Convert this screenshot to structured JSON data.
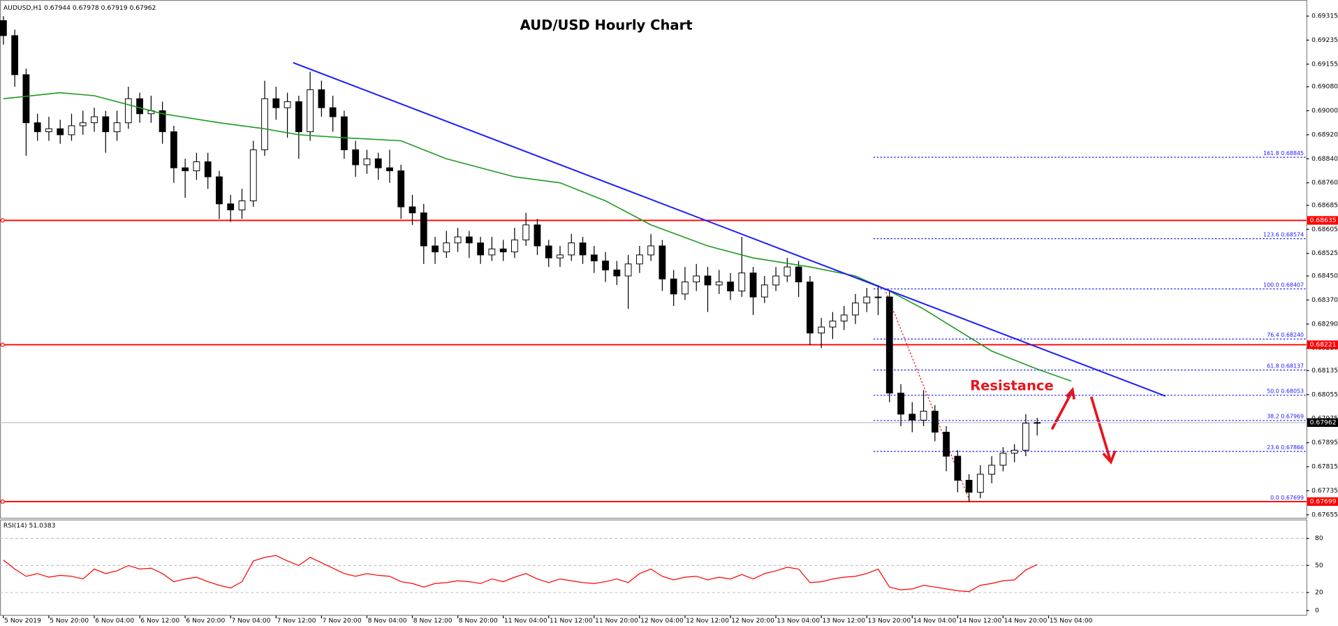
{
  "chart_data": {
    "type": "candlestick",
    "symbol": "AUDUSD,H1",
    "quote": [
      0.67944,
      0.67978,
      0.67919,
      0.67962
    ],
    "title": "AUD/USD Hourly Chart",
    "annotation": "Resistance",
    "xlim": [
      -0.3,
      114.7
    ],
    "xticks": [
      {
        "value": 0,
        "label": "5 Nov 2019"
      },
      {
        "value": 4,
        "label": "5 Nov 20:00"
      },
      {
        "value": 8,
        "label": "6 Nov 04:00"
      },
      {
        "value": 12,
        "label": "6 Nov 12:00"
      },
      {
        "value": 16,
        "label": "6 Nov 20:00"
      },
      {
        "value": 20,
        "label": "7 Nov 04:00"
      },
      {
        "value": 24,
        "label": "7 Nov 12:00"
      },
      {
        "value": 28,
        "label": "7 Nov 20:00"
      },
      {
        "value": 32,
        "label": "8 Nov 04:00"
      },
      {
        "value": 36,
        "label": "8 Nov 12:00"
      },
      {
        "value": 40,
        "label": "8 Nov 20:00"
      },
      {
        "value": 44,
        "label": "11 Nov 04:00"
      },
      {
        "value": 48,
        "label": "11 Nov 12:00"
      },
      {
        "value": 52,
        "label": "11 Nov 20:00"
      },
      {
        "value": 56,
        "label": "12 Nov 04:00"
      },
      {
        "value": 60,
        "label": "12 Nov 12:00"
      },
      {
        "value": 64,
        "label": "12 Nov 20:00"
      },
      {
        "value": 68,
        "label": "13 Nov 04:00"
      },
      {
        "value": 72,
        "label": "13 Nov 12:00"
      },
      {
        "value": 76,
        "label": "13 Nov 20:00"
      },
      {
        "value": 80,
        "label": "14 Nov 04:00"
      },
      {
        "value": 84,
        "label": "14 Nov 12:00"
      },
      {
        "value": 88,
        "label": "14 Nov 20:00"
      },
      {
        "value": 92,
        "label": "15 Nov 04:00"
      }
    ],
    "ylim": [
      0.67645,
      0.6936
    ],
    "yticks": [
      {
        "value": 0.69315,
        "label": "0.69315"
      },
      {
        "value": 0.69235,
        "label": "0.69235"
      },
      {
        "value": 0.69155,
        "label": "0.69155"
      },
      {
        "value": 0.6908,
        "label": "0.69080"
      },
      {
        "value": 0.69,
        "label": "0.69000"
      },
      {
        "value": 0.6892,
        "label": "0.68920"
      },
      {
        "value": 0.6884,
        "label": "0.68840"
      },
      {
        "value": 0.6876,
        "label": "0.68760"
      },
      {
        "value": 0.68685,
        "label": "0.68685"
      },
      {
        "value": 0.68605,
        "label": "0.68605"
      },
      {
        "value": 0.68525,
        "label": "0.68525"
      },
      {
        "value": 0.6845,
        "label": "0.68450"
      },
      {
        "value": 0.6837,
        "label": "0.68370"
      },
      {
        "value": 0.6829,
        "label": "0.68290"
      },
      {
        "value": 0.6821,
        "label": "0.68210"
      },
      {
        "value": 0.68135,
        "label": "0.68135"
      },
      {
        "value": 0.68055,
        "label": "0.68055"
      },
      {
        "value": 0.67975,
        "label": "0.67975"
      },
      {
        "value": 0.67895,
        "label": "0.67895"
      },
      {
        "value": 0.67815,
        "label": "0.67815"
      },
      {
        "value": 0.67735,
        "label": "0.67735"
      },
      {
        "value": 0.67655,
        "label": "0.67655"
      }
    ],
    "up_color": "#ffffff",
    "down_color": "#000000",
    "ohlc": [
      [
        0.693,
        0.69315,
        0.6922,
        0.6925
      ],
      [
        0.6925,
        0.6927,
        0.6908,
        0.6912
      ],
      [
        0.6912,
        0.6914,
        0.6885,
        0.6896
      ],
      [
        0.6896,
        0.6899,
        0.689,
        0.6893
      ],
      [
        0.6893,
        0.6898,
        0.689,
        0.6894
      ],
      [
        0.6894,
        0.6897,
        0.6889,
        0.6892
      ],
      [
        0.6892,
        0.6899,
        0.689,
        0.6895
      ],
      [
        0.6895,
        0.69,
        0.6892,
        0.6896
      ],
      [
        0.6896,
        0.6901,
        0.6893,
        0.6898
      ],
      [
        0.6898,
        0.69,
        0.6886,
        0.6893
      ],
      [
        0.6893,
        0.69,
        0.689,
        0.6896
      ],
      [
        0.6896,
        0.6908,
        0.6894,
        0.6904
      ],
      [
        0.6904,
        0.6906,
        0.6896,
        0.6899
      ],
      [
        0.6899,
        0.6905,
        0.6896,
        0.69
      ],
      [
        0.69,
        0.6903,
        0.6889,
        0.6893
      ],
      [
        0.6893,
        0.6895,
        0.6876,
        0.6881
      ],
      [
        0.6881,
        0.6884,
        0.6871,
        0.688
      ],
      [
        0.688,
        0.6886,
        0.6877,
        0.6883
      ],
      [
        0.6883,
        0.6886,
        0.6874,
        0.6878
      ],
      [
        0.6878,
        0.688,
        0.6864,
        0.6869
      ],
      [
        0.6869,
        0.6872,
        0.6863,
        0.6867
      ],
      [
        0.6867,
        0.6874,
        0.6864,
        0.687
      ],
      [
        0.687,
        0.689,
        0.6868,
        0.6887
      ],
      [
        0.6887,
        0.691,
        0.6885,
        0.6904
      ],
      [
        0.6904,
        0.6908,
        0.6897,
        0.6901
      ],
      [
        0.6901,
        0.6906,
        0.6891,
        0.6903
      ],
      [
        0.6903,
        0.6905,
        0.6884,
        0.6893
      ],
      [
        0.6893,
        0.6913,
        0.689,
        0.6907
      ],
      [
        0.6907,
        0.691,
        0.6898,
        0.6901
      ],
      [
        0.6901,
        0.6905,
        0.6893,
        0.6898
      ],
      [
        0.6898,
        0.69,
        0.6884,
        0.6887
      ],
      [
        0.6887,
        0.689,
        0.6878,
        0.6882
      ],
      [
        0.6882,
        0.6887,
        0.6879,
        0.6884
      ],
      [
        0.6884,
        0.6886,
        0.6877,
        0.6881
      ],
      [
        0.6881,
        0.6887,
        0.6876,
        0.688
      ],
      [
        0.688,
        0.6882,
        0.6864,
        0.6868
      ],
      [
        0.6868,
        0.6872,
        0.6862,
        0.6866
      ],
      [
        0.6866,
        0.6869,
        0.6849,
        0.6855
      ],
      [
        0.6855,
        0.6858,
        0.6849,
        0.6853
      ],
      [
        0.6853,
        0.686,
        0.6851,
        0.6856
      ],
      [
        0.6856,
        0.6861,
        0.6853,
        0.6858
      ],
      [
        0.6858,
        0.686,
        0.6851,
        0.6856
      ],
      [
        0.6856,
        0.6858,
        0.6849,
        0.6852
      ],
      [
        0.6852,
        0.6858,
        0.685,
        0.6854
      ],
      [
        0.6854,
        0.6857,
        0.685,
        0.6853
      ],
      [
        0.6853,
        0.6861,
        0.6851,
        0.6857
      ],
      [
        0.6857,
        0.6866,
        0.6855,
        0.6862
      ],
      [
        0.6862,
        0.6864,
        0.6852,
        0.6855
      ],
      [
        0.6855,
        0.6857,
        0.6848,
        0.6851
      ],
      [
        0.6851,
        0.6855,
        0.6848,
        0.6852
      ],
      [
        0.6852,
        0.6859,
        0.685,
        0.6856
      ],
      [
        0.6856,
        0.6858,
        0.6849,
        0.6852
      ],
      [
        0.6852,
        0.6855,
        0.6846,
        0.685
      ],
      [
        0.685,
        0.6853,
        0.6843,
        0.6847
      ],
      [
        0.6847,
        0.685,
        0.6842,
        0.6845
      ],
      [
        0.6845,
        0.6852,
        0.6834,
        0.6849
      ],
      [
        0.6849,
        0.6855,
        0.6846,
        0.6852
      ],
      [
        0.6852,
        0.6859,
        0.685,
        0.6855
      ],
      [
        0.6855,
        0.6857,
        0.684,
        0.6844
      ],
      [
        0.6844,
        0.6847,
        0.6835,
        0.6839
      ],
      [
        0.6839,
        0.6848,
        0.6837,
        0.6843
      ],
      [
        0.6843,
        0.6849,
        0.684,
        0.6845
      ],
      [
        0.6845,
        0.6848,
        0.6833,
        0.6842
      ],
      [
        0.6842,
        0.6847,
        0.6839,
        0.6843
      ],
      [
        0.6843,
        0.6846,
        0.6837,
        0.684
      ],
      [
        0.684,
        0.6858,
        0.6838,
        0.6846
      ],
      [
        0.6846,
        0.6848,
        0.6832,
        0.6838
      ],
      [
        0.6838,
        0.6845,
        0.6836,
        0.6842
      ],
      [
        0.6842,
        0.6848,
        0.684,
        0.6845
      ],
      [
        0.6845,
        0.6851,
        0.6843,
        0.6848
      ],
      [
        0.6848,
        0.685,
        0.6838,
        0.6843
      ],
      [
        0.6843,
        0.6845,
        0.6822,
        0.6826
      ],
      [
        0.6826,
        0.6831,
        0.6821,
        0.6828
      ],
      [
        0.6828,
        0.6833,
        0.6824,
        0.683
      ],
      [
        0.683,
        0.6835,
        0.6827,
        0.6832
      ],
      [
        0.6832,
        0.6839,
        0.6829,
        0.6836
      ],
      [
        0.6836,
        0.6841,
        0.6833,
        0.6838
      ],
      [
        0.6838,
        0.6842,
        0.6832,
        0.6838
      ],
      [
        0.6838,
        0.684,
        0.6803,
        0.6806
      ],
      [
        0.6806,
        0.6809,
        0.6795,
        0.6799
      ],
      [
        0.6799,
        0.6803,
        0.6793,
        0.6797
      ],
      [
        0.6797,
        0.6807,
        0.6795,
        0.68
      ],
      [
        0.68,
        0.6802,
        0.679,
        0.6793
      ],
      [
        0.6793,
        0.6795,
        0.678,
        0.6785
      ],
      [
        0.6785,
        0.6787,
        0.6773,
        0.6777
      ],
      [
        0.6777,
        0.6779,
        0.67699,
        0.6773
      ],
      [
        0.6773,
        0.6782,
        0.6771,
        0.6779
      ],
      [
        0.6779,
        0.6785,
        0.6776,
        0.6782
      ],
      [
        0.6782,
        0.6788,
        0.678,
        0.6786
      ],
      [
        0.6786,
        0.6789,
        0.6783,
        0.6787
      ],
      [
        0.6787,
        0.6799,
        0.6785,
        0.6796
      ],
      [
        0.6796,
        0.67978,
        0.67919,
        0.67962
      ]
    ],
    "ma": {
      "color": "#1f9a1f",
      "x": [
        0,
        5,
        8,
        14,
        19,
        23,
        26,
        30,
        35,
        39,
        45,
        49,
        53,
        57,
        62,
        66,
        71,
        75,
        78,
        81,
        84,
        87,
        91,
        94
      ],
      "values": [
        0.6904,
        0.6906,
        0.6905,
        0.6899,
        0.6896,
        0.6894,
        0.6892,
        0.6891,
        0.689,
        0.6884,
        0.6878,
        0.6876,
        0.687,
        0.6862,
        0.6855,
        0.6851,
        0.6848,
        0.6845,
        0.684,
        0.6834,
        0.6827,
        0.682,
        0.6814,
        0.681
      ]
    },
    "trendline": {
      "color": "#1a1aff",
      "x": [
        25.5,
        102.3
      ],
      "values": [
        0.6916,
        0.6805
      ]
    },
    "levels": {
      "color": "#ff0000",
      "values": [
        0.68635,
        0.68221,
        0.67699
      ]
    },
    "fib": {
      "color": "#1a1aff",
      "levels": [
        {
          "ratio": "161.8",
          "price": {
            "value": 0.68845,
            "label": "0.68845"
          }
        },
        {
          "ratio": "123.6",
          "price": {
            "value": 0.68574,
            "label": "0.68574"
          }
        },
        {
          "ratio": "100.0",
          "price": {
            "value": 0.68407,
            "label": "0.68407"
          }
        },
        {
          "ratio": "76.4",
          "price": {
            "value": 0.6824,
            "label": "0.68240"
          }
        },
        {
          "ratio": "61.8",
          "price": {
            "value": 0.68137,
            "label": "0.68137"
          }
        },
        {
          "ratio": "50.0",
          "price": {
            "value": 0.68053,
            "label": "0.68053"
          }
        },
        {
          "ratio": "38.2",
          "price": {
            "value": 0.67969,
            "label": "0.67969"
          }
        },
        {
          "ratio": "23.6",
          "price": {
            "value": 0.67866,
            "label": "0.67866"
          }
        },
        {
          "ratio": "0.0",
          "price": {
            "value": 0.67699,
            "label": "0.67699"
          }
        }
      ]
    },
    "current": 0.67962,
    "rsi": {
      "name": "RSI(14)",
      "current": 51.0383,
      "color": "#ff0000",
      "ylim": [
        0,
        100
      ],
      "yticks": [
        80,
        50,
        20,
        0
      ],
      "values": [
        56,
        46,
        38,
        41,
        37,
        39,
        38,
        35,
        46,
        41,
        44,
        50,
        46,
        47,
        41,
        32,
        35,
        37,
        32,
        28,
        25,
        32,
        55,
        59,
        61,
        55,
        50,
        59,
        53,
        47,
        41,
        38,
        41,
        39,
        38,
        32,
        30,
        26,
        30,
        31,
        33,
        32,
        30,
        35,
        32,
        37,
        41,
        35,
        31,
        35,
        33,
        31,
        30,
        32,
        35,
        31,
        41,
        46,
        38,
        34,
        37,
        38,
        34,
        37,
        35,
        40,
        35,
        41,
        44,
        48,
        46,
        31,
        32,
        35,
        37,
        38,
        41,
        46,
        26,
        23,
        24,
        28,
        26,
        24,
        22,
        21,
        28,
        30,
        33,
        34,
        45,
        51
      ]
    }
  }
}
